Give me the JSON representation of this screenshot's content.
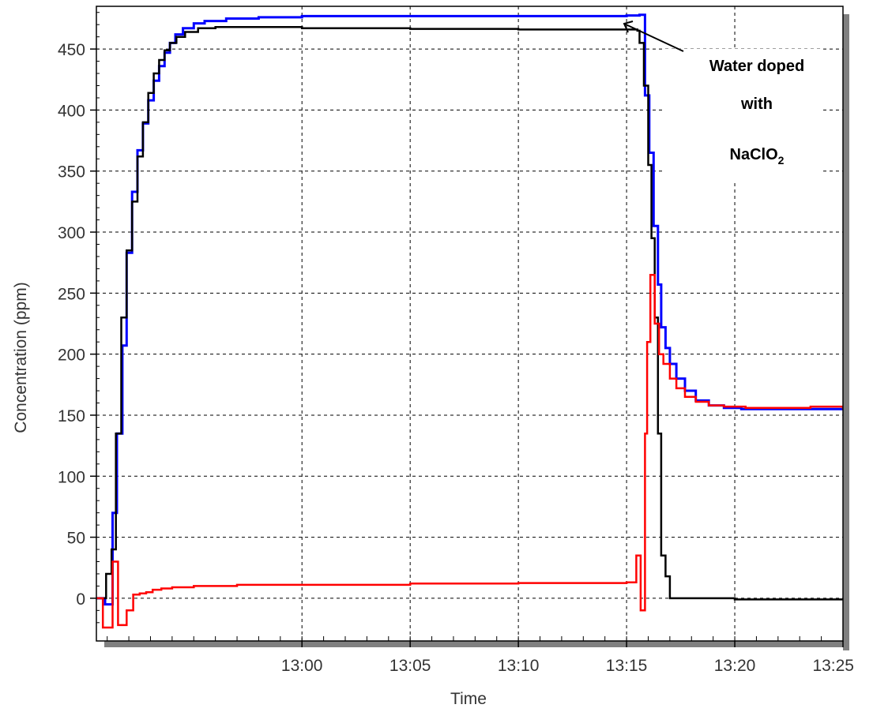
{
  "chart_data": {
    "type": "line",
    "title": "",
    "xlabel": "Time",
    "ylabel": "Concentration (ppm)",
    "x_unit": "minutes after 13:00",
    "xlim": [
      -9.5,
      25
    ],
    "ylim": [
      -35,
      485
    ],
    "x_ticks": [
      {
        "x": 0,
        "label": "13:00"
      },
      {
        "x": 5,
        "label": "13:05"
      },
      {
        "x": 10,
        "label": "13:10"
      },
      {
        "x": 15,
        "label": "13:15"
      },
      {
        "x": 20,
        "label": "13:20"
      },
      {
        "x": 25,
        "label": "13:25"
      }
    ],
    "y_ticks": [
      0,
      50,
      100,
      150,
      200,
      250,
      300,
      350,
      400,
      450
    ],
    "grid": true,
    "legend": "none",
    "annotation": {
      "line1": "Water doped",
      "line2": "with",
      "line3_main": "NaClO",
      "line3_sub": "2"
    },
    "series": [
      {
        "color": "#0000ff",
        "step": true,
        "points": [
          [
            -9.5,
            0
          ],
          [
            -9.1,
            -5
          ],
          [
            -8.75,
            70
          ],
          [
            -8.55,
            135
          ],
          [
            -8.3,
            207
          ],
          [
            -8.1,
            283
          ],
          [
            -7.85,
            333
          ],
          [
            -7.6,
            367
          ],
          [
            -7.35,
            389
          ],
          [
            -7.1,
            408
          ],
          [
            -6.85,
            424
          ],
          [
            -6.6,
            436
          ],
          [
            -6.35,
            447
          ],
          [
            -6.1,
            455
          ],
          [
            -5.85,
            462
          ],
          [
            -5.5,
            467
          ],
          [
            -5.0,
            471
          ],
          [
            -4.5,
            473
          ],
          [
            -3.5,
            475
          ],
          [
            -2.0,
            476
          ],
          [
            0,
            477
          ],
          [
            5,
            477
          ],
          [
            10,
            477
          ],
          [
            15,
            477.5
          ],
          [
            15.6,
            478
          ],
          [
            15.7,
            478
          ],
          [
            15.85,
            412
          ],
          [
            16.05,
            365
          ],
          [
            16.25,
            305
          ],
          [
            16.45,
            257
          ],
          [
            16.6,
            222
          ],
          [
            16.8,
            205
          ],
          [
            17.0,
            192
          ],
          [
            17.3,
            180
          ],
          [
            17.7,
            170
          ],
          [
            18.2,
            162
          ],
          [
            18.8,
            158
          ],
          [
            19.5,
            156
          ],
          [
            20.3,
            155
          ],
          [
            21.5,
            155
          ],
          [
            23,
            155
          ],
          [
            25,
            154
          ]
        ]
      },
      {
        "color": "#000000",
        "step": true,
        "points": [
          [
            -9.5,
            0
          ],
          [
            -9.05,
            20
          ],
          [
            -8.8,
            40
          ],
          [
            -8.6,
            135
          ],
          [
            -8.35,
            230
          ],
          [
            -8.1,
            285
          ],
          [
            -7.85,
            325
          ],
          [
            -7.6,
            362
          ],
          [
            -7.35,
            390
          ],
          [
            -7.1,
            414
          ],
          [
            -6.85,
            430
          ],
          [
            -6.6,
            441
          ],
          [
            -6.35,
            449
          ],
          [
            -6.1,
            455
          ],
          [
            -5.8,
            460
          ],
          [
            -5.4,
            464
          ],
          [
            -4.8,
            467
          ],
          [
            -4.0,
            468
          ],
          [
            -2.0,
            468
          ],
          [
            0,
            467
          ],
          [
            5,
            466.5
          ],
          [
            10,
            466
          ],
          [
            15,
            466
          ],
          [
            15.5,
            465
          ],
          [
            15.6,
            455
          ],
          [
            15.8,
            420
          ],
          [
            16.0,
            355
          ],
          [
            16.15,
            295
          ],
          [
            16.3,
            230
          ],
          [
            16.45,
            135
          ],
          [
            16.6,
            35
          ],
          [
            16.8,
            18
          ],
          [
            17.0,
            0
          ],
          [
            20,
            -1
          ],
          [
            25,
            -1
          ]
        ]
      },
      {
        "color": "#ff0000",
        "step": true,
        "points": [
          [
            -9.5,
            0
          ],
          [
            -9.2,
            -24
          ],
          [
            -8.75,
            30
          ],
          [
            -8.5,
            -22
          ],
          [
            -8.1,
            -10
          ],
          [
            -7.8,
            3
          ],
          [
            -7.5,
            4
          ],
          [
            -7.2,
            5
          ],
          [
            -6.9,
            7
          ],
          [
            -6.5,
            8
          ],
          [
            -6.0,
            9
          ],
          [
            -5.0,
            10
          ],
          [
            -3.0,
            11
          ],
          [
            0,
            11
          ],
          [
            5,
            12
          ],
          [
            10,
            12.5
          ],
          [
            15,
            13
          ],
          [
            15.4,
            13
          ],
          [
            15.45,
            35
          ],
          [
            15.65,
            -10
          ],
          [
            15.85,
            135
          ],
          [
            15.95,
            210
          ],
          [
            16.1,
            265
          ],
          [
            16.3,
            225
          ],
          [
            16.5,
            200
          ],
          [
            16.7,
            192
          ],
          [
            17.0,
            180
          ],
          [
            17.3,
            172
          ],
          [
            17.7,
            165
          ],
          [
            18.2,
            161
          ],
          [
            18.8,
            158
          ],
          [
            19.5,
            157
          ],
          [
            20.5,
            156
          ],
          [
            22,
            156
          ],
          [
            23.5,
            157
          ],
          [
            25,
            155
          ]
        ]
      }
    ]
  }
}
